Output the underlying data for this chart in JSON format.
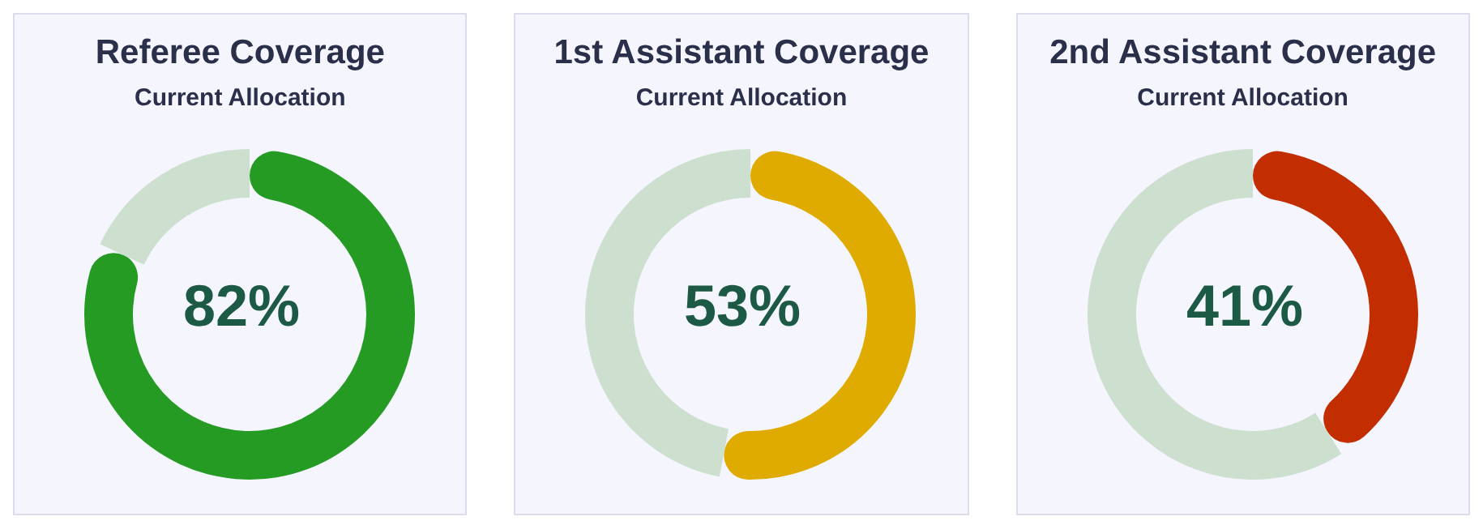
{
  "chart_data": [
    {
      "type": "donut",
      "title": "Referee Coverage",
      "subtitle": "Current Allocation",
      "categories": [
        null,
        null
      ],
      "values": [
        82,
        18
      ],
      "colors": [
        "#259b24",
        "#cde0d0"
      ],
      "annotations": [
        "82%"
      ]
    },
    {
      "type": "donut",
      "title": "1st Assistant Coverage",
      "subtitle": "Current Allocation",
      "categories": [
        null,
        null
      ],
      "values": [
        53,
        47
      ],
      "colors": [
        "#dfab00",
        "#cde0d0"
      ],
      "annotations": [
        "53%"
      ]
    },
    {
      "type": "donut",
      "title": "2nd Assistant Coverage",
      "subtitle": "Current Allocation",
      "categories": [
        null,
        null
      ],
      "values": [
        41,
        59
      ],
      "colors": [
        "#c22e00",
        "#cde0d0"
      ],
      "annotations": [
        "41%"
      ]
    }
  ]
}
